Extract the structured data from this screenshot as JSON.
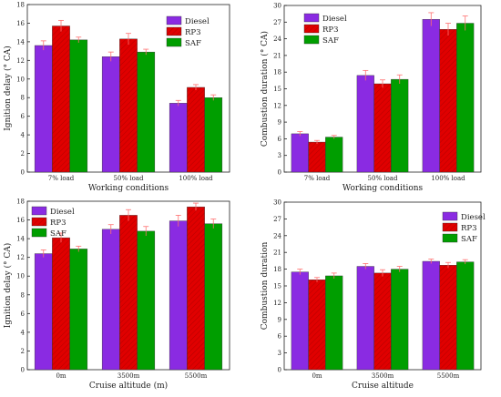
{
  "colors": {
    "Diesel": "#8A2BE2",
    "RP3": "#E00000",
    "SAF": "#009E00",
    "error_bar": "#ff7070"
  },
  "chart_data": [
    {
      "type": "bar",
      "categories": [
        "7% load",
        "50% load",
        "100% load"
      ],
      "series": [
        {
          "name": "Diesel",
          "values": [
            13.6,
            12.4,
            7.4
          ],
          "errors": [
            0.5,
            0.5,
            0.3
          ]
        },
        {
          "name": "RP3",
          "values": [
            15.7,
            14.3,
            9.1
          ],
          "errors": [
            0.6,
            0.6,
            0.3
          ]
        },
        {
          "name": "SAF",
          "values": [
            14.2,
            12.9,
            8.0
          ],
          "errors": [
            0.3,
            0.3,
            0.3
          ]
        }
      ],
      "xlabel": "Working conditions",
      "ylabel": "Ignition delay (° CA)",
      "ylim": [
        0,
        18
      ],
      "yticks": [
        0,
        2,
        4,
        6,
        8,
        10,
        12,
        14,
        16,
        18
      ],
      "legend": "top-right",
      "grid": false
    },
    {
      "type": "bar",
      "categories": [
        "7% load",
        "50% load",
        "100% load"
      ],
      "series": [
        {
          "name": "Diesel",
          "values": [
            6.9,
            17.4,
            27.5
          ],
          "errors": [
            0.4,
            0.9,
            1.2
          ]
        },
        {
          "name": "RP3",
          "values": [
            5.4,
            15.9,
            25.7
          ],
          "errors": [
            0.3,
            0.7,
            1.1
          ]
        },
        {
          "name": "SAF",
          "values": [
            6.3,
            16.7,
            26.8
          ],
          "errors": [
            0.3,
            0.8,
            1.3
          ]
        }
      ],
      "xlabel": "Working conditions",
      "ylabel": "Combustion duration (° CA)",
      "ylim": [
        0,
        30
      ],
      "yticks": [
        0,
        3,
        6,
        9,
        12,
        15,
        18,
        21,
        24,
        27,
        30
      ],
      "legend": "top-left",
      "grid": false
    },
    {
      "type": "bar",
      "categories": [
        "0m",
        "3500m",
        "5500m"
      ],
      "series": [
        {
          "name": "Diesel",
          "values": [
            12.4,
            15.0,
            15.9
          ],
          "errors": [
            0.4,
            0.5,
            0.6
          ]
        },
        {
          "name": "RP3",
          "values": [
            14.1,
            16.5,
            17.4
          ],
          "errors": [
            0.5,
            0.6,
            0.4
          ]
        },
        {
          "name": "SAF",
          "values": [
            12.9,
            14.8,
            15.6
          ],
          "errors": [
            0.3,
            0.5,
            0.5
          ]
        }
      ],
      "xlabel": "Cruise altitude (m)",
      "ylabel": "Ignition delay (° CA)",
      "ylim": [
        0,
        18
      ],
      "yticks": [
        0,
        2,
        4,
        6,
        8,
        10,
        12,
        14,
        16,
        18
      ],
      "legend": "top-left",
      "grid": false
    },
    {
      "type": "bar",
      "categories": [
        "0m",
        "3500m",
        "5500m"
      ],
      "series": [
        {
          "name": "Diesel",
          "values": [
            17.5,
            18.5,
            19.4
          ],
          "errors": [
            0.5,
            0.5,
            0.4
          ]
        },
        {
          "name": "RP3",
          "values": [
            16.1,
            17.3,
            18.7
          ],
          "errors": [
            0.4,
            0.6,
            0.5
          ]
        },
        {
          "name": "SAF",
          "values": [
            16.8,
            18.0,
            19.3
          ],
          "errors": [
            0.5,
            0.5,
            0.4
          ]
        }
      ],
      "xlabel": "Cruise altitude",
      "ylabel": "Combustion duration",
      "ylim": [
        0,
        30
      ],
      "yticks": [
        0,
        3,
        6,
        9,
        12,
        15,
        18,
        21,
        24,
        27,
        30
      ],
      "legend": "top-right",
      "grid": false
    }
  ]
}
